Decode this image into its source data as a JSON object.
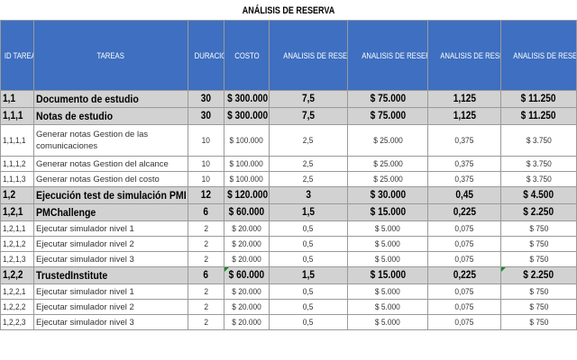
{
  "title": "ANÁLISIS DE RESERVA",
  "columns": [
    "ID TAREA",
    "TAREAS",
    "DURACION (Horas)",
    "COSTO",
    "ANALISIS DE RESERVA CONTINGENCIA (Horas)",
    "ANALISIS DE RESERVA CONTINGENCIA (Costo)",
    "ANALISIS DE RESERVA GESTION (Horas)",
    "ANALISIS DE RESERVA GESTION (Costo)"
  ],
  "rows": [
    {
      "type": "sum",
      "id": "1,1",
      "task": "Documento de estudio",
      "dur": "30",
      "cost": "$ 300.000",
      "ch": "7,5",
      "cc": "$ 75.000",
      "gh": "1,125",
      "gc": "$ 11.250"
    },
    {
      "type": "sum",
      "id": "1,1,1",
      "task": "Notas de estudio",
      "dur": "30",
      "cost": "$ 300.000",
      "ch": "7,5",
      "cc": "$ 75.000",
      "gh": "1,125",
      "gc": "$ 11.250"
    },
    {
      "type": "det",
      "tall": true,
      "id": "1,1,1,1",
      "task": "Generar notas Gestion de las comunicaciones",
      "dur": "10",
      "cost": "$ 100.000",
      "ch": "2,5",
      "cc": "$ 25.000",
      "gh": "0,375",
      "gc": "$ 3.750"
    },
    {
      "type": "det",
      "id": "1,1,1,2",
      "task": "Generar notas Gestion del alcance",
      "dur": "10",
      "cost": "$ 100.000",
      "ch": "2,5",
      "cc": "$ 25.000",
      "gh": "0,375",
      "gc": "$ 3.750"
    },
    {
      "type": "det",
      "id": "1,1,1,3",
      "task": "Generar notas Gestion del costo",
      "dur": "10",
      "cost": "$ 100.000",
      "ch": "2,5",
      "cc": "$ 25.000",
      "gh": "0,375",
      "gc": "$ 3.750"
    },
    {
      "type": "sum",
      "id": "1,2",
      "task": "Ejecución test de simulación PMI",
      "dur": "12",
      "cost": "$ 120.000",
      "ch": "3",
      "cc": "$ 30.000",
      "gh": "0,45",
      "gc": "$ 4.500"
    },
    {
      "type": "sum",
      "id": "1,2,1",
      "task": "PMChallenge",
      "dur": "6",
      "cost": "$ 60.000",
      "ch": "1,5",
      "cc": "$ 15.000",
      "gh": "0,225",
      "gc": "$ 2.250"
    },
    {
      "type": "det",
      "id": "1,2,1,1",
      "task": "Ejecutar simulador nivel 1",
      "dur": "2",
      "cost": "$ 20.000",
      "ch": "0,5",
      "cc": "$ 5.000",
      "gh": "0,075",
      "gc": "$ 750"
    },
    {
      "type": "det",
      "id": "1,2,1,2",
      "task": "Ejecutar simulador nivel 2",
      "dur": "2",
      "cost": "$ 20.000",
      "ch": "0,5",
      "cc": "$ 5.000",
      "gh": "0,075",
      "gc": "$ 750"
    },
    {
      "type": "det",
      "id": "1,2,1,3",
      "task": "Ejecutar simulador nivel 3",
      "dur": "2",
      "cost": "$ 20.000",
      "ch": "0,5",
      "cc": "$ 5.000",
      "gh": "0,075",
      "gc": "$ 750"
    },
    {
      "type": "sum",
      "id": "1,2,2",
      "task": "TrustedInstitute",
      "dur": "6",
      "cost": "$ 60.000",
      "ch": "1,5",
      "cc": "$ 15.000",
      "gh": "0,225",
      "gc": "$ 2.250",
      "marked": true
    },
    {
      "type": "det",
      "id": "1,2,2,1",
      "task": "Ejecutar simulador nivel 1",
      "dur": "2",
      "cost": "$ 20.000",
      "ch": "0,5",
      "cc": "$ 5.000",
      "gh": "0,075",
      "gc": "$ 750"
    },
    {
      "type": "det",
      "id": "1,2,2,2",
      "task": "Ejecutar simulador nivel 2",
      "dur": "2",
      "cost": "$ 20.000",
      "ch": "0,5",
      "cc": "$ 5.000",
      "gh": "0,075",
      "gc": "$ 750"
    },
    {
      "type": "det",
      "id": "1,2,2,3",
      "task": "Ejecutar simulador nivel 3",
      "dur": "2",
      "cost": "$ 20.000",
      "ch": "0,5",
      "cc": "$ 5.000",
      "gh": "0,075",
      "gc": "$ 750"
    }
  ],
  "colors": {
    "header_bg": "#3e6fc0",
    "summary_bg": "#d2d2d2",
    "cell_marker": "#1a8a2a"
  }
}
